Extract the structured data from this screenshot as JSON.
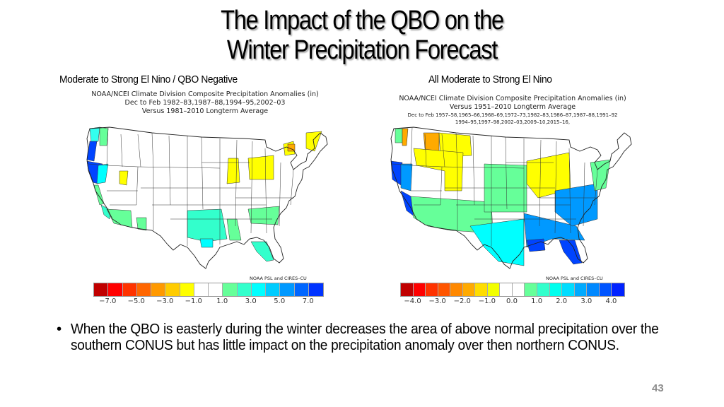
{
  "slide": {
    "title_line1": "The Impact of the QBO on the",
    "title_line2": "Winter Precipitation Forecast",
    "page_number": "43"
  },
  "panels": [
    {
      "label": "Moderate to Strong El Nino / QBO Negative",
      "header": {
        "line1": "NOAA/NCEI Climate Division Composite Precipitation Anomalies (in)",
        "line2": "Dec to Feb   1982–83,1987–88,1994–95,2002–03",
        "line3": "Versus 1981–2010 Longterm Average"
      },
      "credit": "NOAA PSL and CIRES–CU",
      "colorbar": {
        "colors": [
          "#c00000",
          "#ff0000",
          "#ff3300",
          "#ff6600",
          "#ff9900",
          "#ffcc00",
          "#ffff00",
          "#ffffff",
          "#ffffff",
          "#66ff99",
          "#33ffcc",
          "#00ffff",
          "#00ccff",
          "#0099ff",
          "#0066ff",
          "#0033ff"
        ],
        "tick_labels": [
          "−7.0",
          "−5.0",
          "−3.0",
          "−1.0",
          "1.0",
          "3.0",
          "5.0",
          "7.0"
        ]
      },
      "regions": [
        {
          "name": "washington-coast",
          "anomaly_class": "light-cyan"
        },
        {
          "name": "oregon-coast",
          "anomaly_class": "blue"
        },
        {
          "name": "northern-california-coast",
          "anomaly_class": "blue"
        },
        {
          "name": "northern-california-interior",
          "anomaly_class": "cyan"
        },
        {
          "name": "central-california-coast",
          "anomaly_class": "light-green"
        },
        {
          "name": "southern-california",
          "anomaly_class": "teal"
        },
        {
          "name": "idaho-washington-east",
          "anomaly_class": "light-green"
        },
        {
          "name": "utah-north",
          "anomaly_class": "yellow"
        },
        {
          "name": "arizona",
          "anomaly_class": "light-green"
        },
        {
          "name": "new-mexico-south",
          "anomaly_class": "light-green"
        },
        {
          "name": "lower-mississippi-valley",
          "anomaly_class": "teal"
        },
        {
          "name": "louisiana-south",
          "anomaly_class": "cyan"
        },
        {
          "name": "alabama-georgia",
          "anomaly_class": "light-green"
        },
        {
          "name": "carolinas",
          "anomaly_class": "light-green"
        },
        {
          "name": "florida",
          "anomaly_class": "teal"
        },
        {
          "name": "ohio-indiana",
          "anomaly_class": "yellow"
        },
        {
          "name": "pennsylvania-new-york",
          "anomaly_class": "yellow"
        },
        {
          "name": "vermont-new-hampshire",
          "anomaly_class": "yellow"
        },
        {
          "name": "upstate-new-york",
          "anomaly_class": "orange"
        },
        {
          "name": "maine",
          "anomaly_class": "yellow"
        }
      ]
    },
    {
      "label": "All Moderate to Strong El Nino",
      "header": {
        "line1": "NOAA/NCEI Climate Division Composite Precipitation Anomalies (in)",
        "line2": "Versus 1951–2010 Longterm Average",
        "line3": "Dec to Feb   1957–58,1965–66,1968–69,1972–73,1982–83,1986–87,1987–88,1991–92",
        "line4": "1994–95,1997–98,2002–03,2009–10,2015–16,"
      },
      "credit": "NOAA PSL and CIRES–CU",
      "colorbar": {
        "colors": [
          "#c00000",
          "#ff0000",
          "#ff3300",
          "#ff5500",
          "#ff8800",
          "#ffaa00",
          "#ffdd00",
          "#f2ff00",
          "#ffffff",
          "#ffffff",
          "#66ff99",
          "#33ffcc",
          "#00ffee",
          "#00ddff",
          "#00aaff",
          "#0088ff",
          "#0055ff",
          "#0022ff"
        ],
        "tick_labels": [
          "−4.0",
          "−3.0",
          "−2.0",
          "−1.0",
          "0.0",
          "1.0",
          "2.0",
          "3.0",
          "4.0"
        ]
      },
      "regions": [
        {
          "name": "washington-coast",
          "anomaly_class": "light-green"
        },
        {
          "name": "washington-cascades",
          "anomaly_class": "orange"
        },
        {
          "name": "idaho-montana-west",
          "anomaly_class": "orange"
        },
        {
          "name": "montana-east",
          "anomaly_class": "yellow"
        },
        {
          "name": "idaho-south-wyoming",
          "anomaly_class": "yellow"
        },
        {
          "name": "northern-california-coast",
          "anomaly_class": "blue"
        },
        {
          "name": "california-central",
          "anomaly_class": "sky-blue"
        },
        {
          "name": "southern-california",
          "anomaly_class": "blue"
        },
        {
          "name": "nevada-south-arizona",
          "anomaly_class": "light-green"
        },
        {
          "name": "great-plains",
          "anomaly_class": "light-green"
        },
        {
          "name": "texas-south",
          "anomaly_class": "cyan"
        },
        {
          "name": "gulf-coast",
          "anomaly_class": "sky-blue"
        },
        {
          "name": "louisiana-delta",
          "anomaly_class": "blue"
        },
        {
          "name": "ohio-valley",
          "anomaly_class": "yellow"
        },
        {
          "name": "southeast",
          "anomaly_class": "sky-blue"
        },
        {
          "name": "florida",
          "anomaly_class": "blue"
        },
        {
          "name": "mid-atlantic",
          "anomaly_class": "light-green"
        }
      ]
    }
  ],
  "bullets": [
    "When the QBO is easterly during the winter decreases the area of above normal precipitation over the southern CONUS but has little impact on the precipitation anomaly over then northern CONUS."
  ],
  "palette": {
    "blue": "#0044ff",
    "sky-blue": "#0099ff",
    "cyan": "#00ffff",
    "teal": "#33ffcc",
    "light-green": "#66ff99",
    "light-cyan": "#33ffee",
    "yellow": "#ffff00",
    "orange": "#ffaa00"
  }
}
